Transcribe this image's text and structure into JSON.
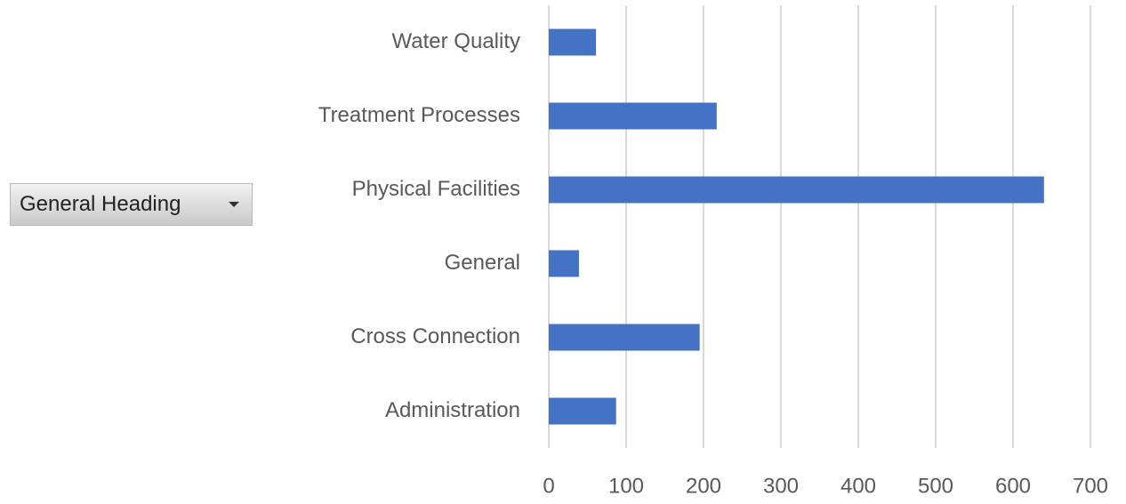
{
  "chart_data": {
    "type": "bar",
    "orientation": "horizontal",
    "field_button": "General Heading",
    "categories": [
      "Administration",
      "Cross Connection",
      "General",
      "Physical Facilities",
      "Treatment Processes",
      "Water Quality"
    ],
    "values": [
      87,
      195,
      39,
      640,
      217,
      61
    ],
    "color": "#4472c4",
    "xlim": [
      0,
      700
    ],
    "xticks": [
      0,
      100,
      200,
      300,
      400,
      500,
      600,
      700
    ],
    "grid": true
  }
}
